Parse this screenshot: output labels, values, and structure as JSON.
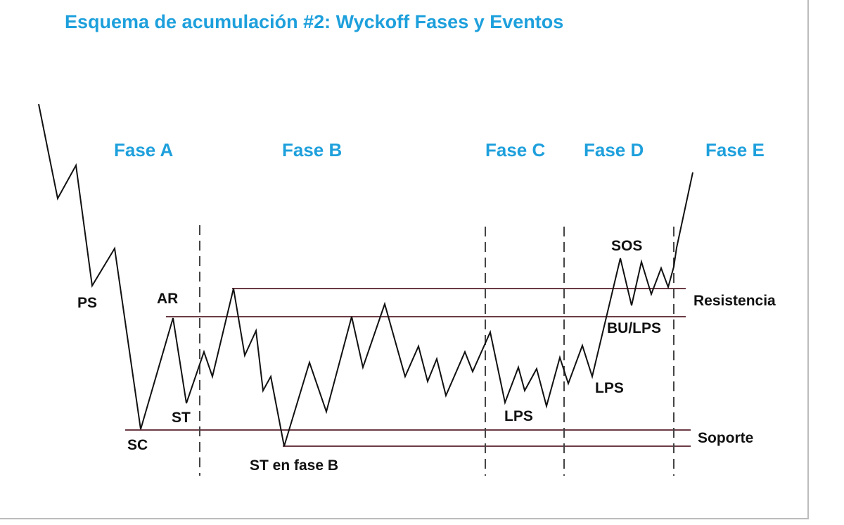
{
  "title": "Esquema de acumulación #2: Wyckoff Fases y Eventos",
  "phases": [
    "Fase A",
    "Fase B",
    "Fase C",
    "Fase D",
    "Fase E"
  ],
  "events": {
    "ps": "PS",
    "sc": "SC",
    "ar": "AR",
    "st": "ST",
    "st_b": "ST en fase B",
    "lps_c": "LPS",
    "lps_d": "LPS",
    "sos": "SOS",
    "bu_lps": "BU/LPS"
  },
  "levels": {
    "resistance": "Resistencia",
    "support": "Soporte"
  },
  "colors": {
    "accent": "#1ea0dc",
    "level_line": "#6b3b45",
    "price": "#111111"
  }
}
